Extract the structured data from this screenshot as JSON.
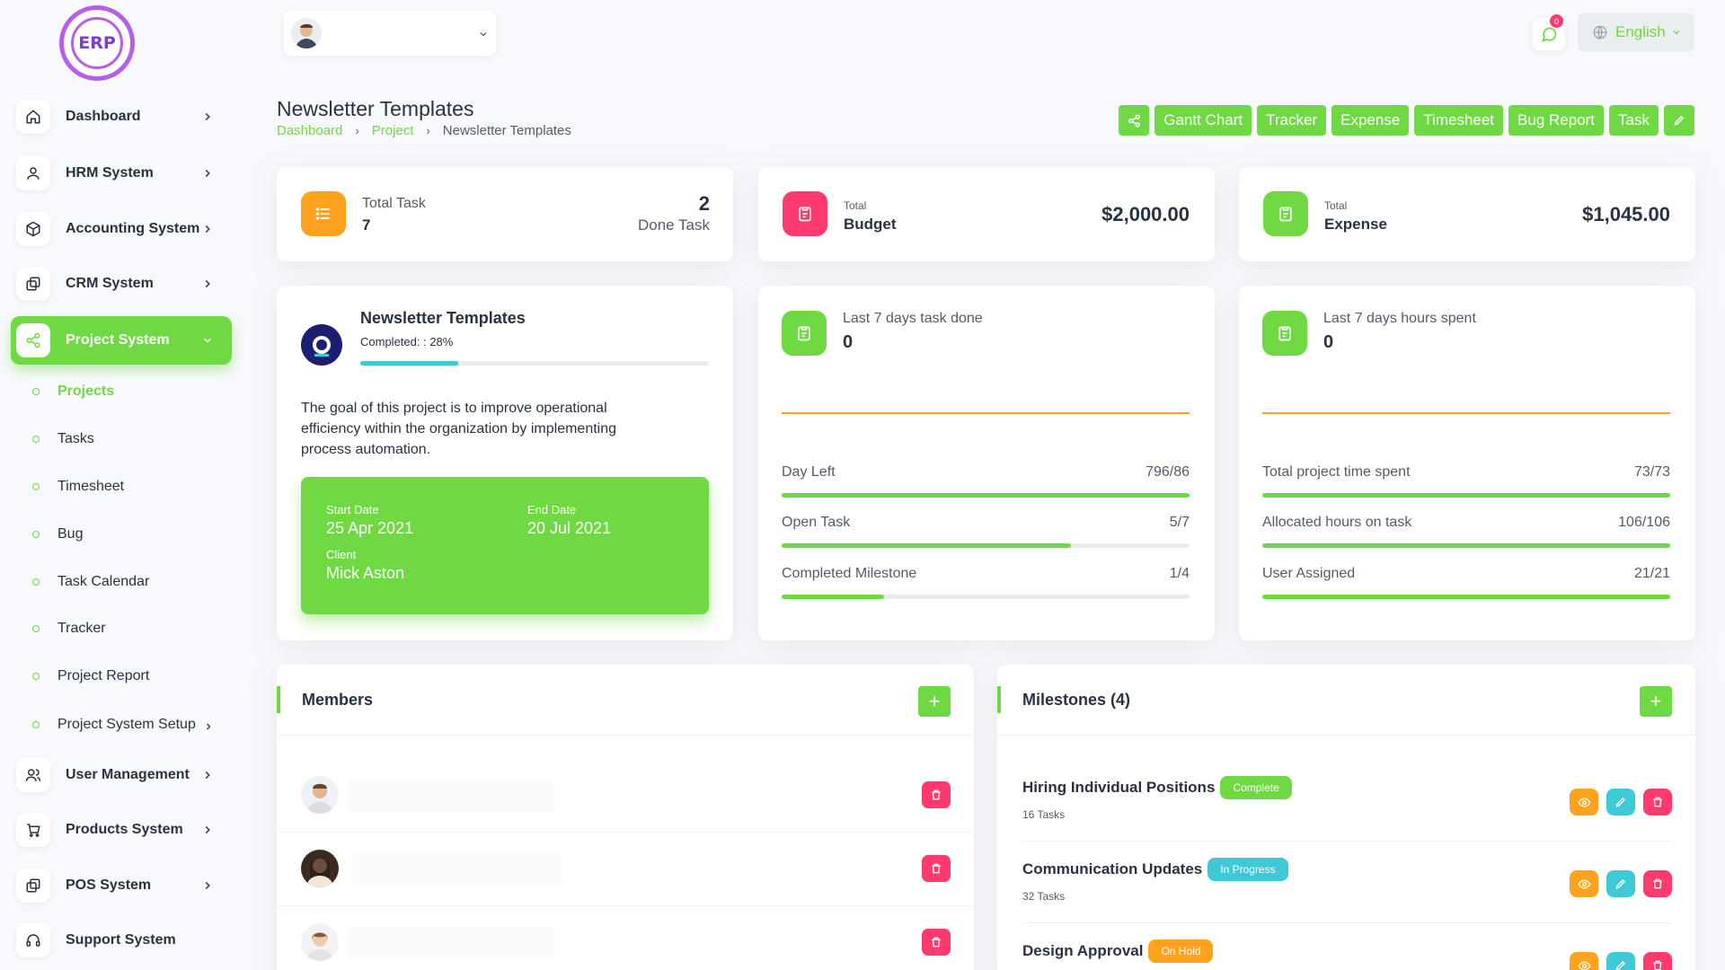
{
  "app": {
    "logo_text": "ERP"
  },
  "sidebar": {
    "items": [
      {
        "label": "Dashboard",
        "icon": "home-icon"
      },
      {
        "label": "HRM System",
        "icon": "user-icon"
      },
      {
        "label": "Accounting System",
        "icon": "box-icon"
      },
      {
        "label": "CRM System",
        "icon": "layers-icon"
      },
      {
        "label": "Project System",
        "icon": "share-icon",
        "active": true
      },
      {
        "label": "User Management",
        "icon": "users-icon"
      },
      {
        "label": "Products System",
        "icon": "cart-icon"
      },
      {
        "label": "POS System",
        "icon": "layers-icon"
      },
      {
        "label": "Support System",
        "icon": "headphones-icon"
      }
    ],
    "sub_items": [
      "Projects",
      "Tasks",
      "Timesheet",
      "Bug",
      "Task Calendar",
      "Tracker",
      "Project Report",
      "Project System Setup"
    ]
  },
  "header": {
    "language": "English",
    "notification_count": "0"
  },
  "page": {
    "title": "Newsletter Templates",
    "breadcrumb": [
      "Dashboard",
      "Project",
      "Newsletter Templates"
    ],
    "actions": [
      "Gantt Chart",
      "Tracker",
      "Expense",
      "Timesheet",
      "Bug Report",
      "Task"
    ]
  },
  "stats": {
    "total_task_label": "Total Task",
    "total_task_value": "7",
    "done_task_value": "2",
    "done_task_label": "Done Task",
    "budget_small": "Total",
    "budget_label": "Budget",
    "budget_value": "$2,000.00",
    "expense_small": "Total",
    "expense_label": "Expense",
    "expense_value": "$1,045.00"
  },
  "project": {
    "name": "Newsletter Templates",
    "completed_label": "Completed: : 28%",
    "completed_pct": 28,
    "description": "The goal of this project is to improve operational efficiency within the organization by implementing process automation.",
    "start_label": "Start Date",
    "start_value": "25 Apr 2021",
    "end_label": "End Date",
    "end_value": "20 Jul 2021",
    "client_label": "Client",
    "client_value": "Mick Aston"
  },
  "tasks_card": {
    "title": "Last 7 days task done",
    "value": "0",
    "rows": [
      {
        "label": "Day Left",
        "value": "796/86",
        "pct": 100
      },
      {
        "label": "Open Task",
        "value": "5/7",
        "pct": 71
      },
      {
        "label": "Completed Milestone",
        "value": "1/4",
        "pct": 25
      }
    ]
  },
  "hours_card": {
    "title": "Last 7 days hours spent",
    "value": "0",
    "rows": [
      {
        "label": "Total project time spent",
        "value": "73/73",
        "pct": 100
      },
      {
        "label": "Allocated hours on task",
        "value": "106/106",
        "pct": 100
      },
      {
        "label": "User Assigned",
        "value": "21/21",
        "pct": 100
      }
    ]
  },
  "members": {
    "title": "Members"
  },
  "milestones": {
    "title": "Milestones (4)",
    "items": [
      {
        "name": "Hiring Individual Positions",
        "status": "Complete",
        "status_color": "#6fd943",
        "tasks": "16 Tasks"
      },
      {
        "name": "Communication Updates",
        "status": "In Progress",
        "status_color": "#3ec9d6",
        "tasks": "32 Tasks"
      },
      {
        "name": "Design Approval",
        "status": "On Hold",
        "status_color": "#ffa21d",
        "tasks": ""
      }
    ]
  },
  "colors": {
    "accent": "#6fd943",
    "danger": "#ff3a6e",
    "warning": "#ffa21d",
    "info": "#3ec9d6",
    "budget": "#ff3a6e",
    "tasks": "#ffa21d"
  }
}
